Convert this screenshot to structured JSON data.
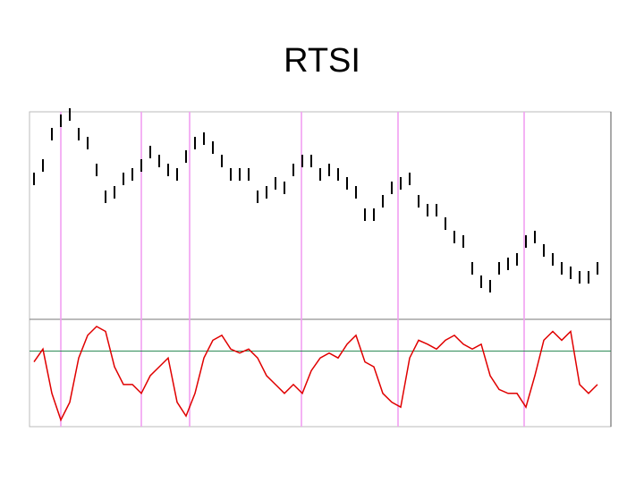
{
  "title": "RTSI",
  "chart_data": [
    {
      "type": "range-bar",
      "color": "#000000",
      "ylim": [
        0,
        232
      ],
      "high": [
        164,
        179,
        214,
        229,
        236,
        214,
        204,
        174,
        144,
        149,
        164,
        169,
        179,
        194,
        184,
        174,
        169,
        189,
        204,
        209,
        199,
        184,
        169,
        169,
        169,
        144,
        149,
        159,
        154,
        174,
        184,
        184,
        169,
        174,
        169,
        159,
        149,
        124,
        124,
        139,
        154,
        159,
        164,
        139,
        129,
        129,
        114,
        99,
        94,
        64,
        49,
        44,
        64,
        69,
        74,
        94,
        99,
        84,
        74,
        64,
        59,
        54,
        54,
        64
      ],
      "low": [
        150,
        165,
        200,
        215,
        222,
        200,
        190,
        160,
        130,
        135,
        150,
        155,
        165,
        180,
        170,
        160,
        155,
        175,
        190,
        195,
        185,
        170,
        155,
        155,
        155,
        130,
        135,
        145,
        140,
        160,
        170,
        170,
        155,
        160,
        155,
        145,
        135,
        110,
        110,
        125,
        140,
        145,
        150,
        125,
        115,
        115,
        100,
        85,
        80,
        50,
        35,
        30,
        50,
        55,
        60,
        80,
        85,
        70,
        60,
        50,
        45,
        40,
        40,
        50
      ]
    },
    {
      "type": "line",
      "color": "#e00000",
      "ylim": [
        0,
        100
      ],
      "reference_line": 75,
      "reference_color": "#2e8b57",
      "values": [
        64,
        77,
        32,
        5,
        23,
        68,
        91,
        100,
        95,
        59,
        41,
        41,
        32,
        50,
        59,
        68,
        23,
        9,
        32,
        68,
        86,
        91,
        77,
        73,
        77,
        68,
        50,
        41,
        32,
        41,
        32,
        55,
        68,
        73,
        68,
        82,
        91,
        64,
        59,
        32,
        23,
        18,
        68,
        86,
        82,
        77,
        86,
        91,
        82,
        77,
        82,
        50,
        36,
        32,
        32,
        18,
        50,
        86,
        95,
        86,
        95,
        41,
        32,
        41
      ]
    }
  ]
}
